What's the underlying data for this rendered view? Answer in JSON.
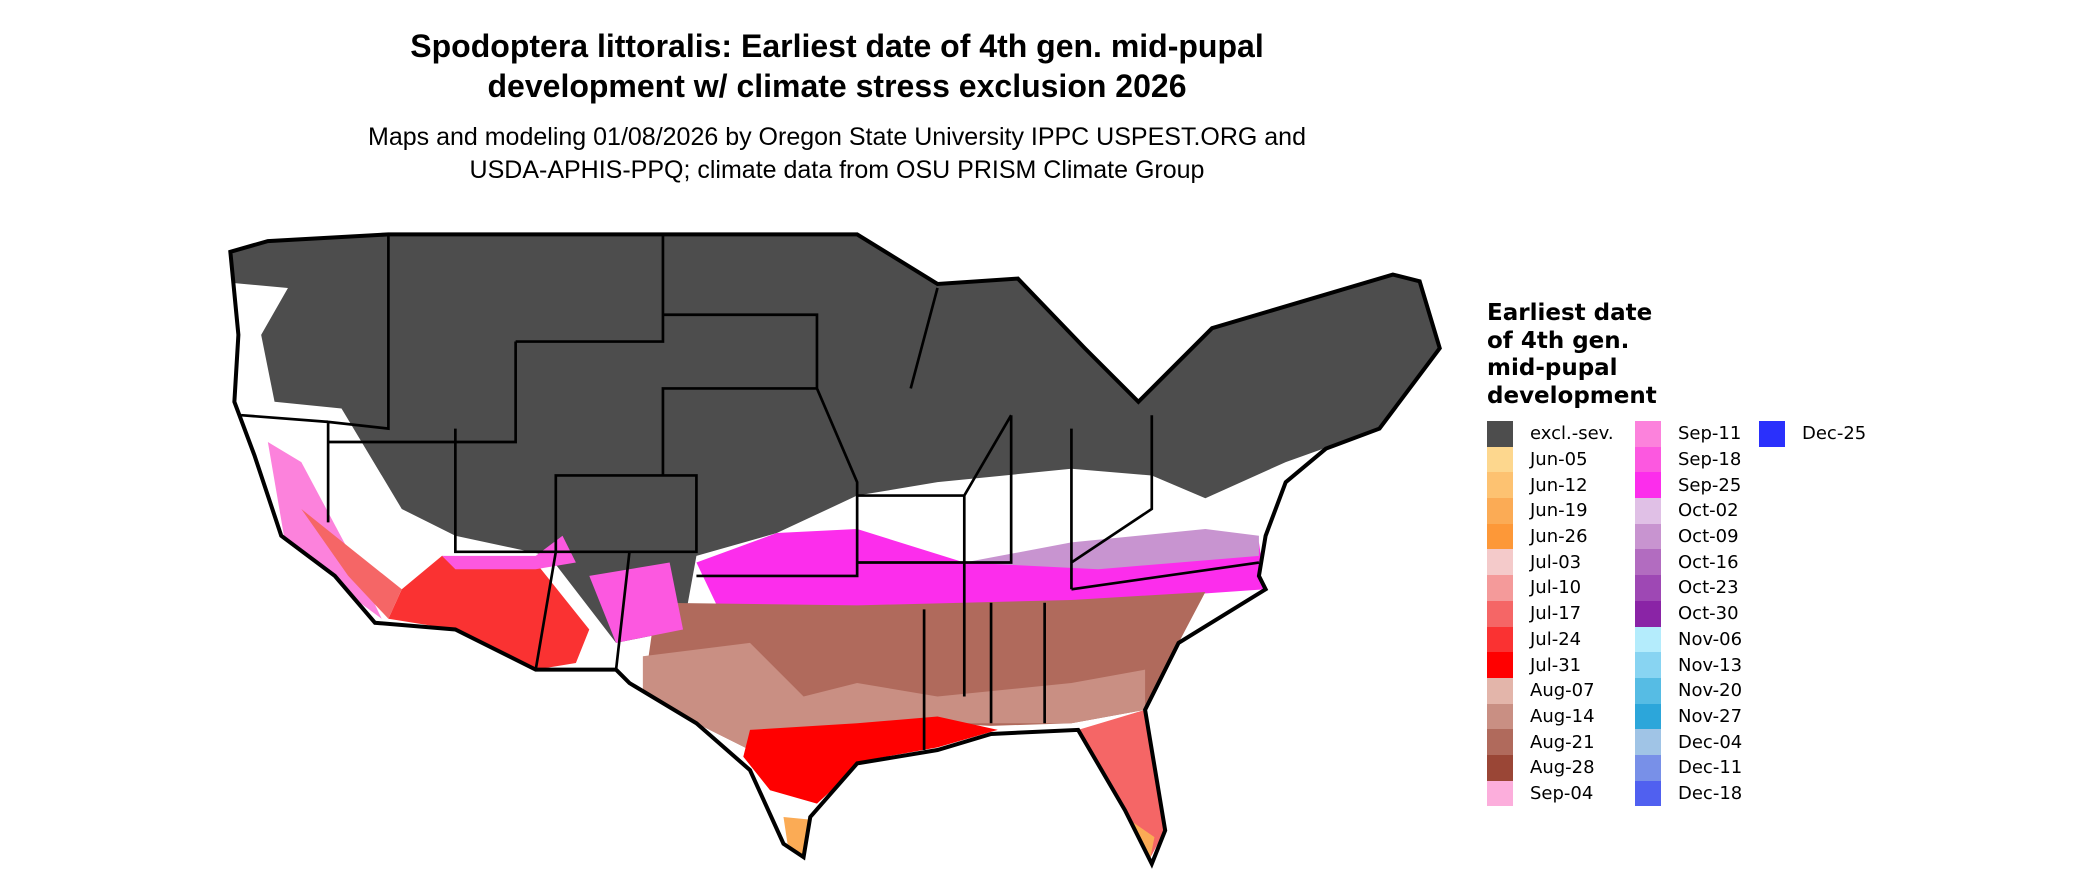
{
  "title": [
    "Spodoptera littoralis: Earliest date of 4th gen. mid-pupal",
    "development w/ climate stress exclusion 2026"
  ],
  "subtitle": [
    "Maps and modeling 01/08/2026 by Oregon State University IPPC USPEST.ORG and",
    "USDA-APHIS-PPQ; climate data from OSU PRISM Climate Group"
  ],
  "legend": {
    "title": [
      "Earliest date",
      "of 4th gen.",
      "mid-pupal",
      "development"
    ],
    "items": [
      {
        "label": "excl.-sev.",
        "color": "#4d4d4d"
      },
      {
        "label": "Jun-05",
        "color": "#fdd78e"
      },
      {
        "label": "Jun-12",
        "color": "#fdc271"
      },
      {
        "label": "Jun-19",
        "color": "#fbab55"
      },
      {
        "label": "Jun-26",
        "color": "#fd9838"
      },
      {
        "label": "Jul-03",
        "color": "#f4caca"
      },
      {
        "label": "Jul-10",
        "color": "#f49a9a"
      },
      {
        "label": "Jul-17",
        "color": "#f56666"
      },
      {
        "label": "Jul-24",
        "color": "#fa3232"
      },
      {
        "label": "Jul-31",
        "color": "#ff0000"
      },
      {
        "label": "Aug-07",
        "color": "#e3b5aa"
      },
      {
        "label": "Aug-14",
        "color": "#c98f83"
      },
      {
        "label": "Aug-21",
        "color": "#b06a5c"
      },
      {
        "label": "Aug-28",
        "color": "#9a4636"
      },
      {
        "label": "Sep-04",
        "color": "#fcaedc"
      },
      {
        "label": "Sep-11",
        "color": "#fc82dc"
      },
      {
        "label": "Sep-18",
        "color": "#fc58e0"
      },
      {
        "label": "Sep-25",
        "color": "#fc2dec"
      },
      {
        "label": "Oct-02",
        "color": "#e0c0e6"
      },
      {
        "label": "Oct-09",
        "color": "#c894d0"
      },
      {
        "label": "Oct-16",
        "color": "#b26cc0"
      },
      {
        "label": "Oct-23",
        "color": "#9e48b4"
      },
      {
        "label": "Oct-30",
        "color": "#8a24a6"
      },
      {
        "label": "Nov-06",
        "color": "#b4ecfc"
      },
      {
        "label": "Nov-13",
        "color": "#88d4f2"
      },
      {
        "label": "Nov-20",
        "color": "#56bce4"
      },
      {
        "label": "Nov-27",
        "color": "#2ca6da"
      },
      {
        "label": "Dec-04",
        "color": "#a0c4e6"
      },
      {
        "label": "Dec-11",
        "color": "#7890e8"
      },
      {
        "label": "Dec-18",
        "color": "#5060f0"
      },
      {
        "label": "Dec-25",
        "color": "#2a30fc"
      }
    ]
  }
}
